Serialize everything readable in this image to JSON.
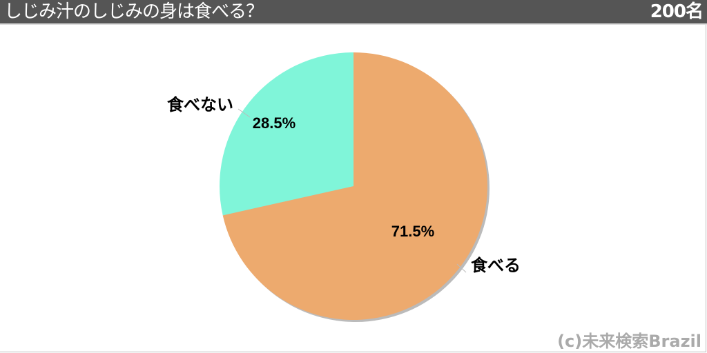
{
  "header": {
    "title": "しじみ汁のしじみの身は食べる？",
    "count": "200名"
  },
  "chart_data": {
    "type": "pie",
    "title": "しじみ汁のしじみの身は食べる？",
    "slices": [
      {
        "label": "食べる",
        "value": 71.5,
        "value_label": "71.5%",
        "color": "#EDAA6E"
      },
      {
        "label": "食べない",
        "value": 28.5,
        "value_label": "28.5%",
        "color": "#80F5D9"
      }
    ],
    "start": "top",
    "direction": "clockwise"
  },
  "credit": "(c)未来検索Brazil"
}
